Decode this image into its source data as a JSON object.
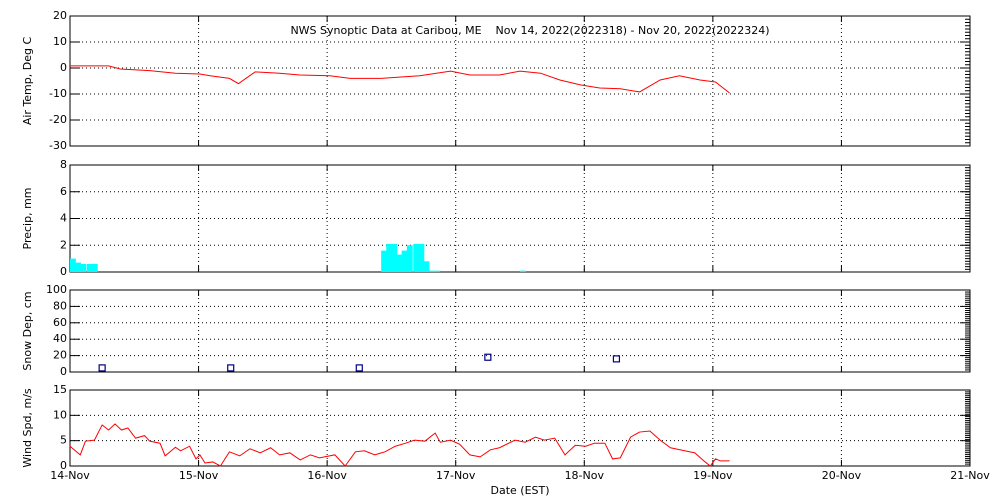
{
  "chart_data": [
    {
      "type": "line",
      "title": "NWS Synoptic Data at Caribou, ME    Nov 14, 2022(2022318) - Nov 20, 2022(2022324)",
      "ylabel": "Air Temp, Deg C",
      "xlim": [
        14,
        21
      ],
      "ylim": [
        -30,
        20
      ],
      "yticks": [
        -30,
        -20,
        -10,
        0,
        10,
        20
      ],
      "grid": true,
      "series": [
        {
          "name": "Air Temp",
          "color": "#ff0000",
          "x": [
            14.0,
            14.3,
            14.39,
            14.62,
            14.82,
            15.01,
            15.09,
            15.24,
            15.31,
            15.44,
            15.63,
            15.79,
            16.02,
            16.18,
            16.41,
            16.72,
            16.96,
            17.11,
            17.34,
            17.5,
            17.66,
            17.81,
            17.97,
            18.12,
            18.28,
            18.43,
            18.59,
            18.74,
            18.9,
            19.02,
            19.13
          ],
          "values": [
            0.8,
            0.8,
            -0.4,
            -1,
            -2,
            -2.3,
            -3,
            -4,
            -6,
            -1.5,
            -2,
            -2.7,
            -3,
            -4,
            -4,
            -3,
            -1.2,
            -2.7,
            -2.7,
            -1.2,
            -2,
            -4.6,
            -6.5,
            -7.7,
            -8,
            -9.2,
            -4.6,
            -3,
            -4.6,
            -5.4,
            -9.6
          ]
        }
      ]
    },
    {
      "type": "bar",
      "ylabel": "Precip, mm",
      "xlim": [
        14,
        21
      ],
      "ylim": [
        0,
        8
      ],
      "yticks": [
        0,
        2,
        4,
        6,
        8
      ],
      "grid": true,
      "series": [
        {
          "name": "Precip",
          "color": "#00ffff",
          "x": [
            14.0,
            14.04,
            14.08,
            14.13,
            14.17,
            16.42,
            16.46,
            16.5,
            16.54,
            16.58,
            16.62,
            16.67,
            16.71,
            16.75,
            16.79,
            16.83,
            17.5
          ],
          "values": [
            1.0,
            0.7,
            0.6,
            0.6,
            0.6,
            1.6,
            2.1,
            2.1,
            1.3,
            1.6,
            2.0,
            2.1,
            2.1,
            0.8,
            0.1,
            0.1,
            0.1
          ]
        }
      ]
    },
    {
      "type": "scatter",
      "ylabel": "Snow Dep, cm",
      "xlim": [
        14,
        21
      ],
      "ylim": [
        0,
        100
      ],
      "yticks": [
        0,
        20,
        40,
        60,
        80,
        100
      ],
      "grid": true,
      "series": [
        {
          "name": "Snow Depth",
          "color": "#000080",
          "x": [
            14.25,
            15.25,
            16.25,
            17.25,
            18.25
          ],
          "values": [
            5,
            5,
            5,
            18,
            16
          ]
        }
      ]
    },
    {
      "type": "line",
      "ylabel": "Wind Spd, m/s",
      "xlabel": "Date (EST)",
      "xlim": [
        14,
        21
      ],
      "ylim": [
        0,
        15
      ],
      "yticks": [
        0,
        5,
        10,
        15
      ],
      "grid": true,
      "xticks": [
        {
          "value": 14,
          "label": "14-Nov"
        },
        {
          "value": 15,
          "label": "15-Nov"
        },
        {
          "value": 16,
          "label": "16-Nov"
        },
        {
          "value": 17,
          "label": "17-Nov"
        },
        {
          "value": 18,
          "label": "18-Nov"
        },
        {
          "value": 19,
          "label": "19-Nov"
        },
        {
          "value": 20,
          "label": "20-Nov"
        },
        {
          "value": 21,
          "label": "21-Nov"
        }
      ],
      "series": [
        {
          "name": "Wind Speed",
          "color": "#ff0000",
          "x": [
            14.0,
            14.08,
            14.12,
            14.19,
            14.25,
            14.3,
            14.35,
            14.4,
            14.45,
            14.51,
            14.58,
            14.62,
            14.7,
            14.74,
            14.82,
            14.86,
            14.93,
            14.98,
            15.01,
            15.05,
            15.11,
            15.17,
            15.24,
            15.32,
            15.4,
            15.48,
            15.56,
            15.63,
            15.71,
            15.79,
            15.87,
            15.94,
            16.06,
            16.14,
            16.22,
            16.29,
            16.37,
            16.45,
            16.53,
            16.61,
            16.68,
            16.76,
            16.84,
            16.88,
            16.96,
            17.03,
            17.11,
            17.19,
            17.27,
            17.34,
            17.46,
            17.54,
            17.62,
            17.69,
            17.77,
            17.85,
            17.93,
            18.01,
            18.08,
            18.16,
            18.22,
            18.28,
            18.36,
            18.43,
            18.51,
            18.59,
            18.67,
            18.78,
            18.86,
            18.94,
            18.98,
            19.02,
            19.06,
            19.13
          ],
          "values": [
            3.9,
            2.2,
            4.9,
            5.1,
            8.1,
            7.1,
            8.3,
            7.1,
            7.5,
            5.5,
            6,
            4.9,
            4.5,
            2,
            3.7,
            3,
            3.9,
            1.4,
            2.2,
            0.6,
            0.8,
            0,
            2.8,
            2,
            3.4,
            2.6,
            3.6,
            2.2,
            2.6,
            1.2,
            2.2,
            1.6,
            2.2,
            0,
            2.8,
            3,
            2.2,
            2.8,
            3.9,
            4.5,
            5.1,
            4.9,
            6.5,
            4.7,
            5.1,
            4.3,
            2.2,
            1.8,
            3.2,
            3.6,
            5.1,
            4.7,
            5.7,
            5.1,
            5.5,
            2.2,
            4.1,
            3.9,
            4.5,
            4.5,
            1.4,
            1.6,
            5.7,
            6.7,
            6.9,
            5.1,
            3.6,
            3,
            2.6,
            0.8,
            0,
            1.4,
            1,
            1
          ]
        }
      ]
    }
  ]
}
